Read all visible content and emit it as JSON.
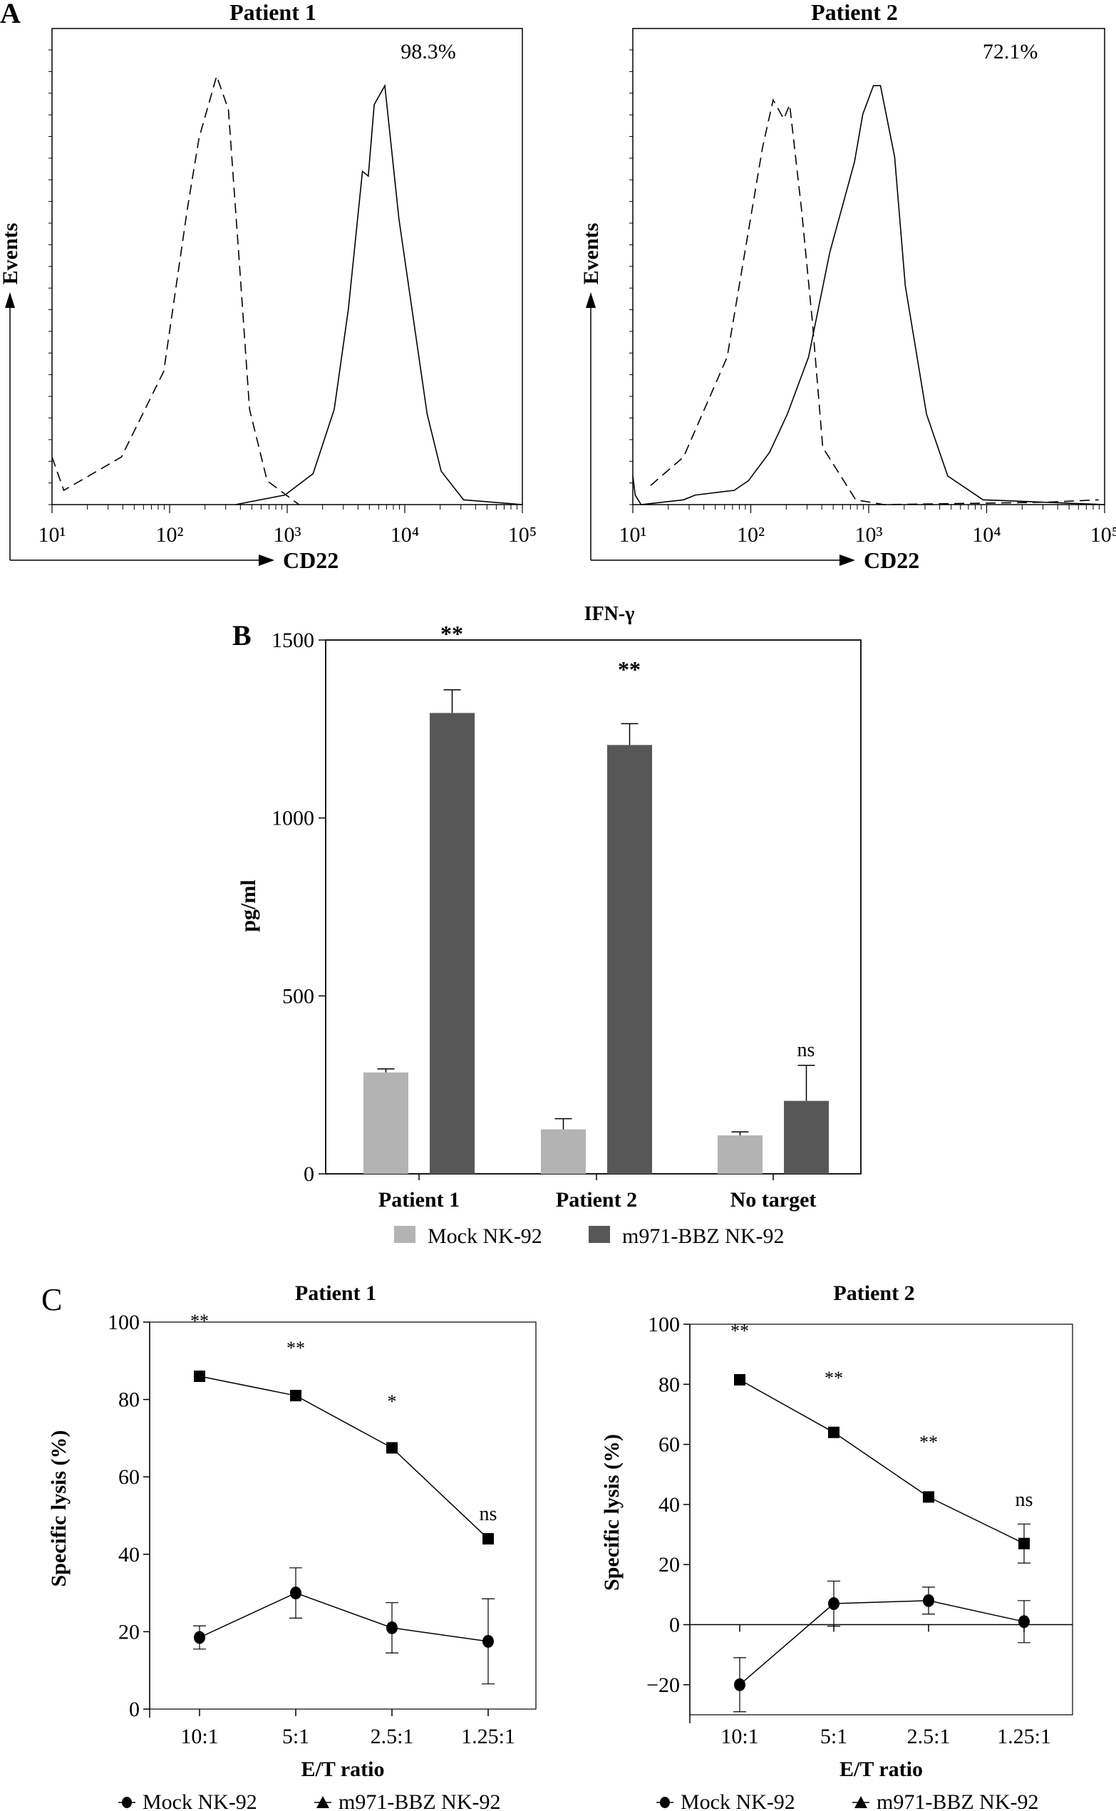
{
  "panel_labels": {
    "a": "A",
    "b": "B",
    "c": "C"
  },
  "chart_data": [
    {
      "type": "area",
      "panel": "A",
      "title": "Patient 1",
      "xlabel": "CD22",
      "ylabel": "Events",
      "x_scale": "log",
      "xlim": [
        10,
        100000
      ],
      "x_tick_labels": [
        "10¹",
        "10²",
        "10³",
        "10⁴",
        "10⁵"
      ],
      "annotation": "98.3%",
      "series": [
        {
          "style": "dashed",
          "log10_x": [
            1.0,
            1.1,
            1.59,
            1.95,
            2.15,
            2.25,
            2.4,
            2.5,
            2.59,
            2.68,
            2.83,
            3.1
          ],
          "relative_events": [
            0.1,
            0.03,
            0.1,
            0.28,
            0.62,
            0.77,
            0.9,
            0.83,
            0.52,
            0.2,
            0.05,
            0
          ]
        },
        {
          "style": "solid",
          "log10_x": [
            2.56,
            2.98,
            3.22,
            3.4,
            3.52,
            3.64,
            3.69,
            3.74,
            3.83,
            3.95,
            4.19,
            4.31,
            4.5,
            5.0
          ],
          "relative_events": [
            0,
            0.02,
            0.065,
            0.2,
            0.41,
            0.7,
            0.69,
            0.84,
            0.88,
            0.6,
            0.19,
            0.07,
            0.01,
            0
          ]
        }
      ]
    },
    {
      "type": "area",
      "panel": "A",
      "title": "Patient 2",
      "xlabel": "CD22",
      "ylabel": "Events",
      "x_scale": "log",
      "xlim": [
        10,
        100000
      ],
      "x_tick_labels": [
        "10¹",
        "10²",
        "10³",
        "10⁴",
        "10⁵"
      ],
      "annotation": "72.1%",
      "series": [
        {
          "style": "dashed",
          "log10_x": [
            1.15,
            1.43,
            1.8,
            1.95,
            2.1,
            2.19,
            2.28,
            2.33,
            2.43,
            2.52,
            2.61,
            2.89,
            3.13,
            4.5,
            4.95
          ],
          "relative_events": [
            0.04,
            0.1,
            0.31,
            0.53,
            0.75,
            0.85,
            0.81,
            0.84,
            0.62,
            0.39,
            0.12,
            0.01,
            0,
            0.005,
            0.01
          ]
        },
        {
          "style": "solid",
          "log10_x": [
            1.0,
            1.02,
            1.07,
            1.43,
            1.53,
            1.86,
            1.98,
            2.16,
            2.31,
            2.49,
            2.67,
            2.88,
            2.95,
            3.04,
            3.1,
            3.22,
            3.31,
            3.49,
            3.67,
            3.97,
            5.0
          ],
          "relative_events": [
            0.06,
            0.02,
            0,
            0.01,
            0.02,
            0.03,
            0.05,
            0.11,
            0.19,
            0.31,
            0.53,
            0.72,
            0.82,
            0.88,
            0.88,
            0.73,
            0.46,
            0.19,
            0.06,
            0.01,
            0
          ]
        }
      ]
    },
    {
      "type": "bar",
      "panel": "B",
      "title": "IFN-γ",
      "ylabel": "pg/ml",
      "xlabel": "",
      "ylim": [
        0,
        1500
      ],
      "y_ticks": [
        0,
        500,
        1000,
        1500
      ],
      "categories": [
        "Patient 1",
        "Patient 2",
        "No target"
      ],
      "legend_placement": "bottom",
      "series": [
        {
          "name": "Mock NK-92",
          "color": "#b3b3b3",
          "values": [
            285,
            125,
            108
          ],
          "errors": [
            10,
            30,
            10
          ]
        },
        {
          "name": "m971-BBZ NK-92",
          "color": "#575757",
          "values": [
            1295,
            1205,
            205
          ],
          "errors": [
            65,
            60,
            100
          ]
        }
      ],
      "significance": [
        "**",
        "**",
        "ns"
      ]
    },
    {
      "type": "line",
      "panel": "C",
      "title": "Patient 1",
      "xlabel": "E/T ratio",
      "ylabel": "Specific lysis (%)",
      "ylim": [
        0,
        100
      ],
      "y_ticks": [
        0,
        20,
        40,
        60,
        80,
        100
      ],
      "categories": [
        "10:1",
        "5:1",
        "2.5:1",
        "1.25:1"
      ],
      "legend_placement": "bottom",
      "series": [
        {
          "name": "Mock NK-92",
          "marker": "circle",
          "values": [
            18.5,
            30,
            21,
            17.5
          ],
          "errors": [
            3,
            6.5,
            6.5,
            11
          ]
        },
        {
          "name": "m971-BBZ NK-92",
          "marker": "square",
          "values": [
            86,
            81,
            67.5,
            44
          ],
          "errors": [
            0.5,
            0.5,
            0.5,
            0.5
          ]
        }
      ],
      "significance": [
        "**",
        "**",
        "*",
        "ns"
      ]
    },
    {
      "type": "line",
      "panel": "C",
      "title": "Patient 2",
      "xlabel": "E/T ratio",
      "ylabel": "Specific lysis (%)",
      "ylim": [
        -30,
        100
      ],
      "y_ticks": [
        -20,
        0,
        20,
        40,
        60,
        80,
        100
      ],
      "categories": [
        "10:1",
        "5:1",
        "2.5:1",
        "1.25:1"
      ],
      "legend_placement": "bottom",
      "series": [
        {
          "name": "Mock NK-92",
          "marker": "circle",
          "values": [
            -20,
            7,
            8,
            1
          ],
          "errors": [
            9,
            7.5,
            4.5,
            7
          ]
        },
        {
          "name": "m971-BBZ NK-92",
          "marker": "square",
          "values": [
            81.5,
            64,
            42.5,
            27
          ],
          "errors": [
            0.5,
            0.5,
            0.5,
            6.5
          ]
        }
      ],
      "significance": [
        "**",
        "**",
        "**",
        "ns"
      ]
    }
  ]
}
